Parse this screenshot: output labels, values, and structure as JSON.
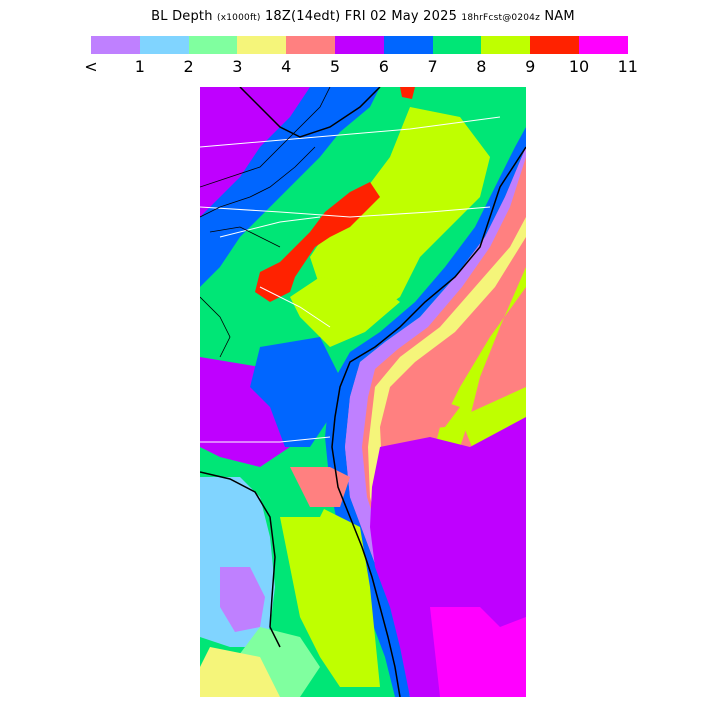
{
  "title": {
    "field": "BL Depth",
    "units": "(x1000ft)",
    "valid": "18Z(14edt)",
    "day": "FRI",
    "date": "02 May 2025",
    "forecast": "18hrFcst@0204z",
    "model": "NAM"
  },
  "legend": {
    "colors": [
      "#bf80ff",
      "#80d4ff",
      "#80ff9f",
      "#f5f57a",
      "#ff8080",
      "#bf00ff",
      "#0066ff",
      "#00e676",
      "#bfff00",
      "#ff2200",
      "#ff00ff"
    ],
    "labels": [
      "<",
      "1",
      "2",
      "3",
      "4",
      "5",
      "6",
      "7",
      "8",
      "9",
      "10",
      "11"
    ]
  },
  "colors": {
    "v1": "#80d4ff",
    "v2": "#80ff9f",
    "v3": "#f5f57a",
    "v4": "#ff8080",
    "v5": "#bf00ff",
    "v6": "#0066ff",
    "v7": "#00e676",
    "v8": "#bfff00",
    "v9": "#ff2200",
    "v10": "#ff00ff",
    "lt": "#bf80ff"
  }
}
